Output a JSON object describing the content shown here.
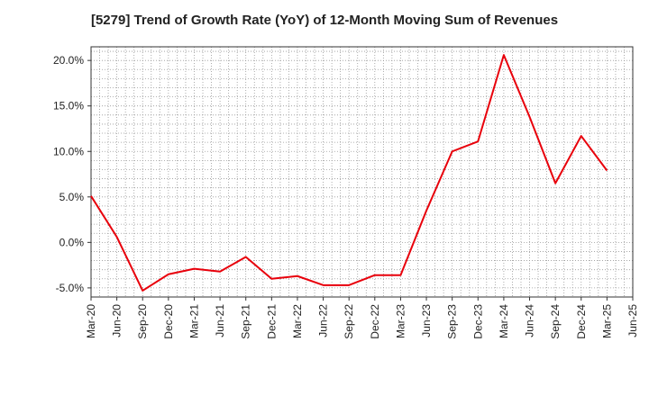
{
  "chart_data": {
    "type": "line",
    "title": "[5279]  Trend of Growth Rate (YoY) of 12-Month Moving Sum of Revenues",
    "xlabel": "",
    "ylabel": "",
    "x_tick_labels": [
      "Mar-20",
      "Jun-20",
      "Sep-20",
      "Dec-20",
      "Mar-21",
      "Jun-21",
      "Sep-21",
      "Dec-21",
      "Mar-22",
      "Jun-22",
      "Sep-22",
      "Dec-22",
      "Mar-23",
      "Jun-23",
      "Sep-23",
      "Dec-23",
      "Mar-24",
      "Jun-24",
      "Sep-24",
      "Dec-24",
      "Mar-25",
      "Jun-25"
    ],
    "y_tick_labels": [
      "-5.0%",
      "0.0%",
      "5.0%",
      "10.0%",
      "15.0%",
      "20.0%"
    ],
    "y_ticks": [
      -5,
      0,
      5,
      10,
      15,
      20
    ],
    "ylim": [
      -6,
      21.5
    ],
    "grid": true,
    "series": [
      {
        "color": "#e8000b",
        "x": [
          "Mar-20",
          "Jun-20",
          "Sep-20",
          "Dec-20",
          "Mar-21",
          "Jun-21",
          "Sep-21",
          "Dec-21",
          "Mar-22",
          "Jun-22",
          "Sep-22",
          "Dec-22",
          "Mar-23",
          "Jun-23",
          "Sep-23",
          "Dec-23",
          "Mar-24",
          "Jun-24",
          "Sep-24",
          "Dec-24",
          "Mar-25"
        ],
        "values": [
          5.1,
          0.6,
          -5.3,
          -3.5,
          -2.9,
          -3.2,
          -1.6,
          -4.0,
          -3.7,
          -4.7,
          -4.7,
          -3.6,
          -3.6,
          3.5,
          10.0,
          11.1,
          20.6,
          13.8,
          6.5,
          11.7,
          7.9
        ]
      }
    ]
  }
}
